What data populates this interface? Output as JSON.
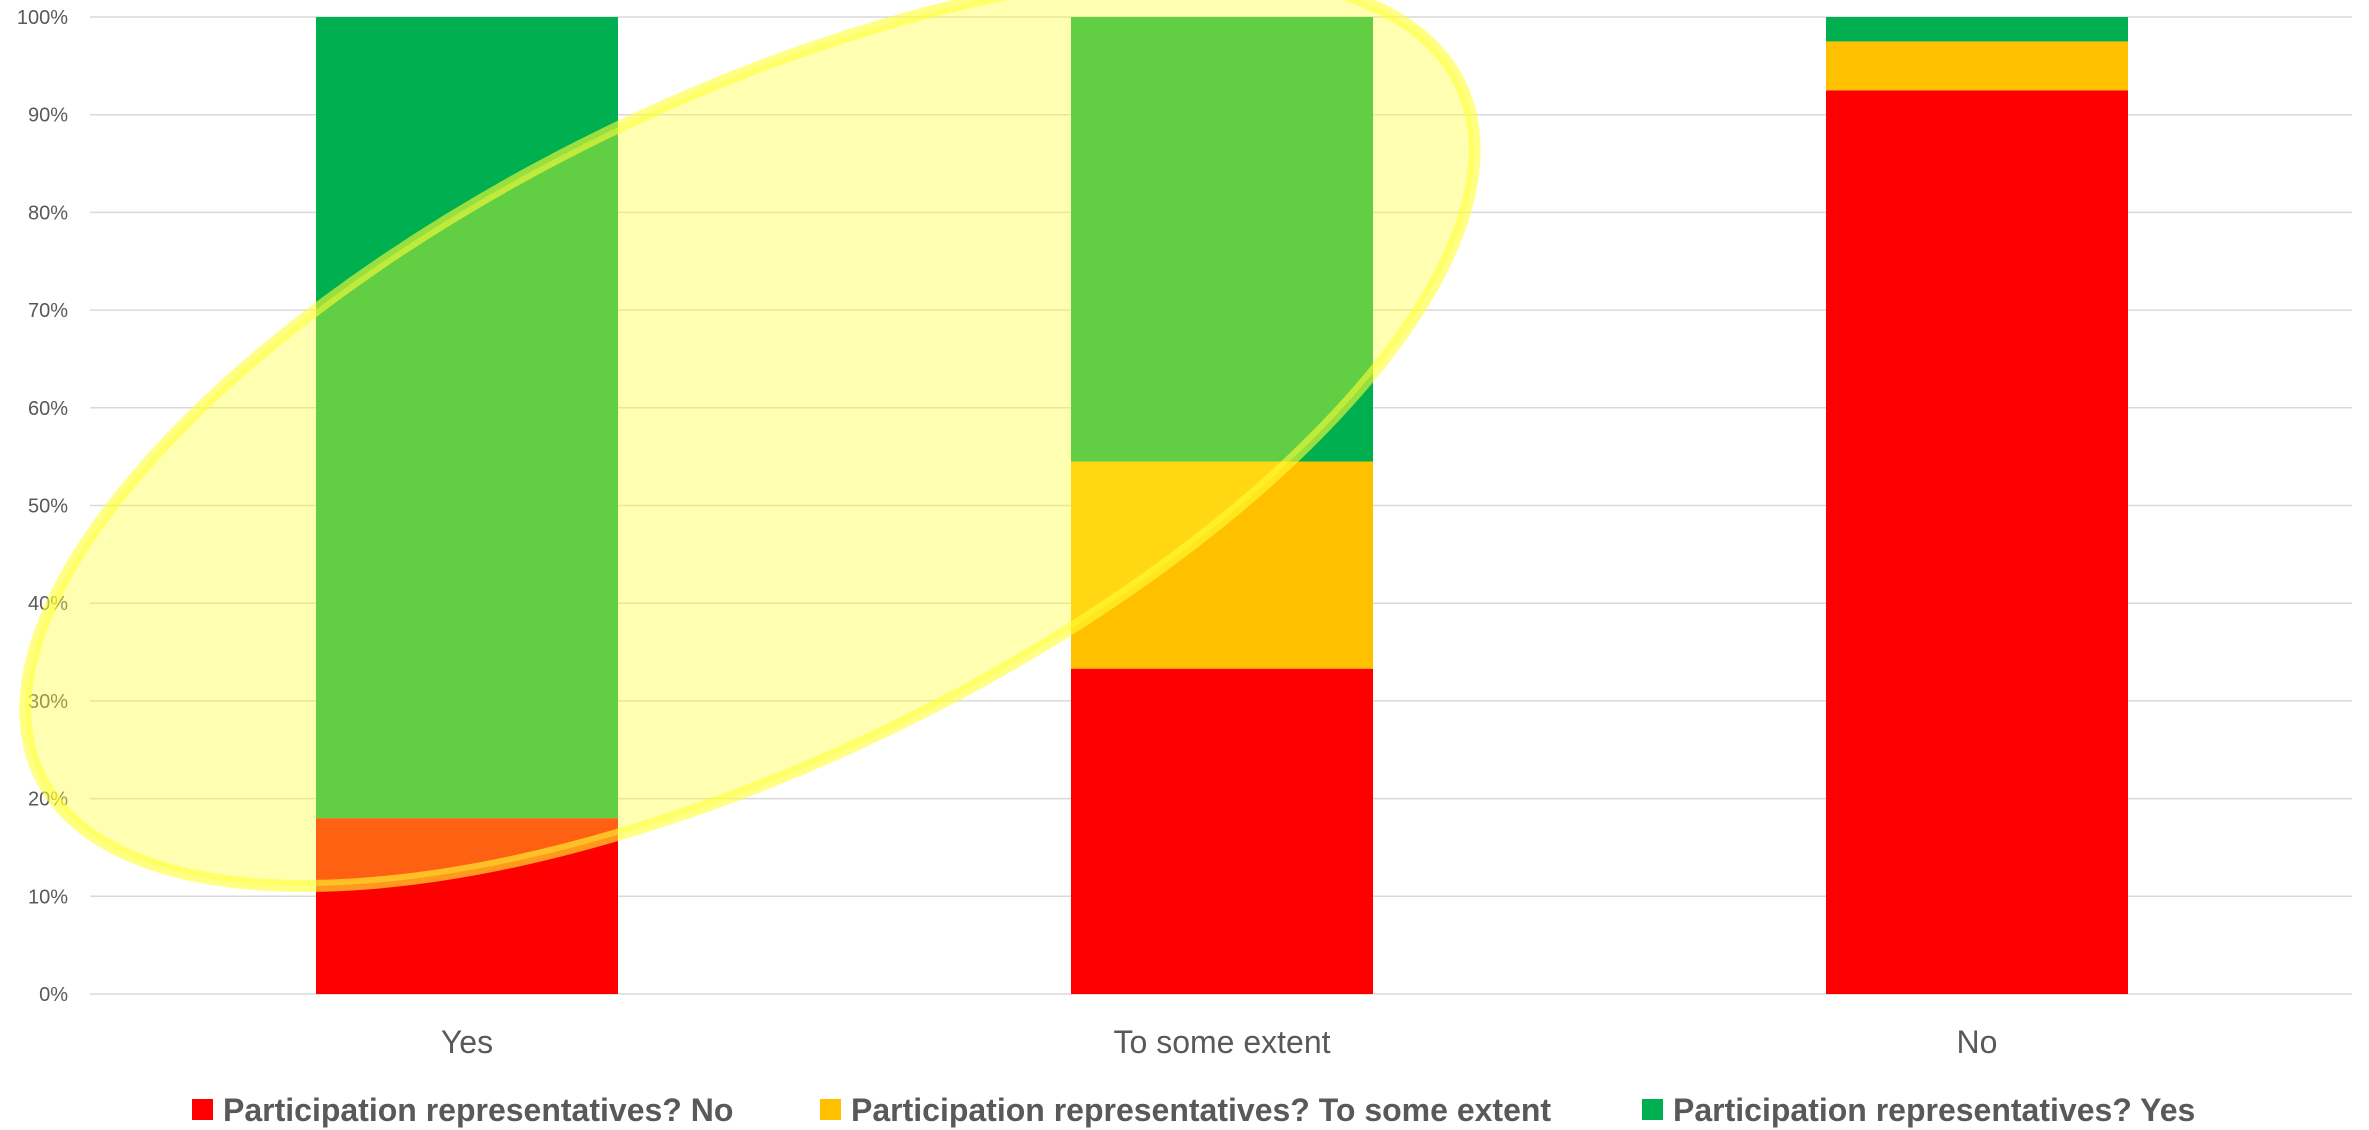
{
  "chart_data": {
    "type": "bar",
    "stacked": true,
    "percent": true,
    "categories": [
      "Yes",
      "To some extent",
      "No"
    ],
    "series": [
      {
        "name": "Participation representatives? No",
        "color": "#ff0000",
        "values": [
          18,
          33.3,
          92.5
        ]
      },
      {
        "name": "Participation representatives? To some extent",
        "color": "#ffc000",
        "values": [
          0,
          21.2,
          5
        ]
      },
      {
        "name": "Participation representatives? Yes",
        "color": "#00b050",
        "values": [
          82,
          45.5,
          2.5
        ]
      }
    ],
    "y_ticks": [
      "0%",
      "10%",
      "20%",
      "30%",
      "40%",
      "50%",
      "60%",
      "70%",
      "80%",
      "90%",
      "100%"
    ],
    "ylim": [
      0,
      100
    ],
    "grid": true,
    "legend_position": "bottom",
    "annotation": {
      "shape": "ellipse",
      "color": "#ffff33",
      "description": "highlight"
    }
  }
}
